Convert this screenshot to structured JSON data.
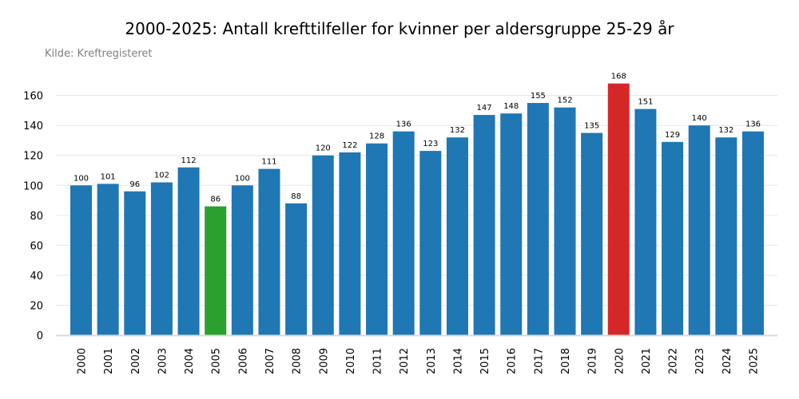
{
  "chart_data": {
    "type": "bar",
    "title": "2000-2025: Antall krefttilfeller for kvinner per aldersgruppe 25-29 år",
    "source": "Kilde: Kreftregisteret",
    "xlabel": "",
    "ylabel": "",
    "categories": [
      "2000",
      "2001",
      "2002",
      "2003",
      "2004",
      "2005",
      "2006",
      "2007",
      "2008",
      "2009",
      "2010",
      "2011",
      "2012",
      "2013",
      "2014",
      "2015",
      "2016",
      "2017",
      "2018",
      "2019",
      "2020",
      "2021",
      "2022",
      "2023",
      "2024",
      "2025"
    ],
    "values": [
      100,
      101,
      96,
      102,
      112,
      86,
      100,
      111,
      88,
      120,
      122,
      128,
      136,
      123,
      132,
      147,
      148,
      155,
      152,
      135,
      168,
      151,
      129,
      140,
      132,
      136
    ],
    "ylim": [
      0,
      175
    ],
    "yticks": [
      0,
      20,
      40,
      60,
      80,
      100,
      120,
      140,
      160
    ],
    "grid": true,
    "colors": {
      "default": "#1f77b4",
      "min": "#2ca02c",
      "max": "#d62728",
      "grid": "#e6e6e6",
      "axis": "#d9d9d9",
      "tick_text": "#000000",
      "label_text": "#000000"
    },
    "highlight": {
      "2005": "min",
      "2020": "max"
    }
  }
}
